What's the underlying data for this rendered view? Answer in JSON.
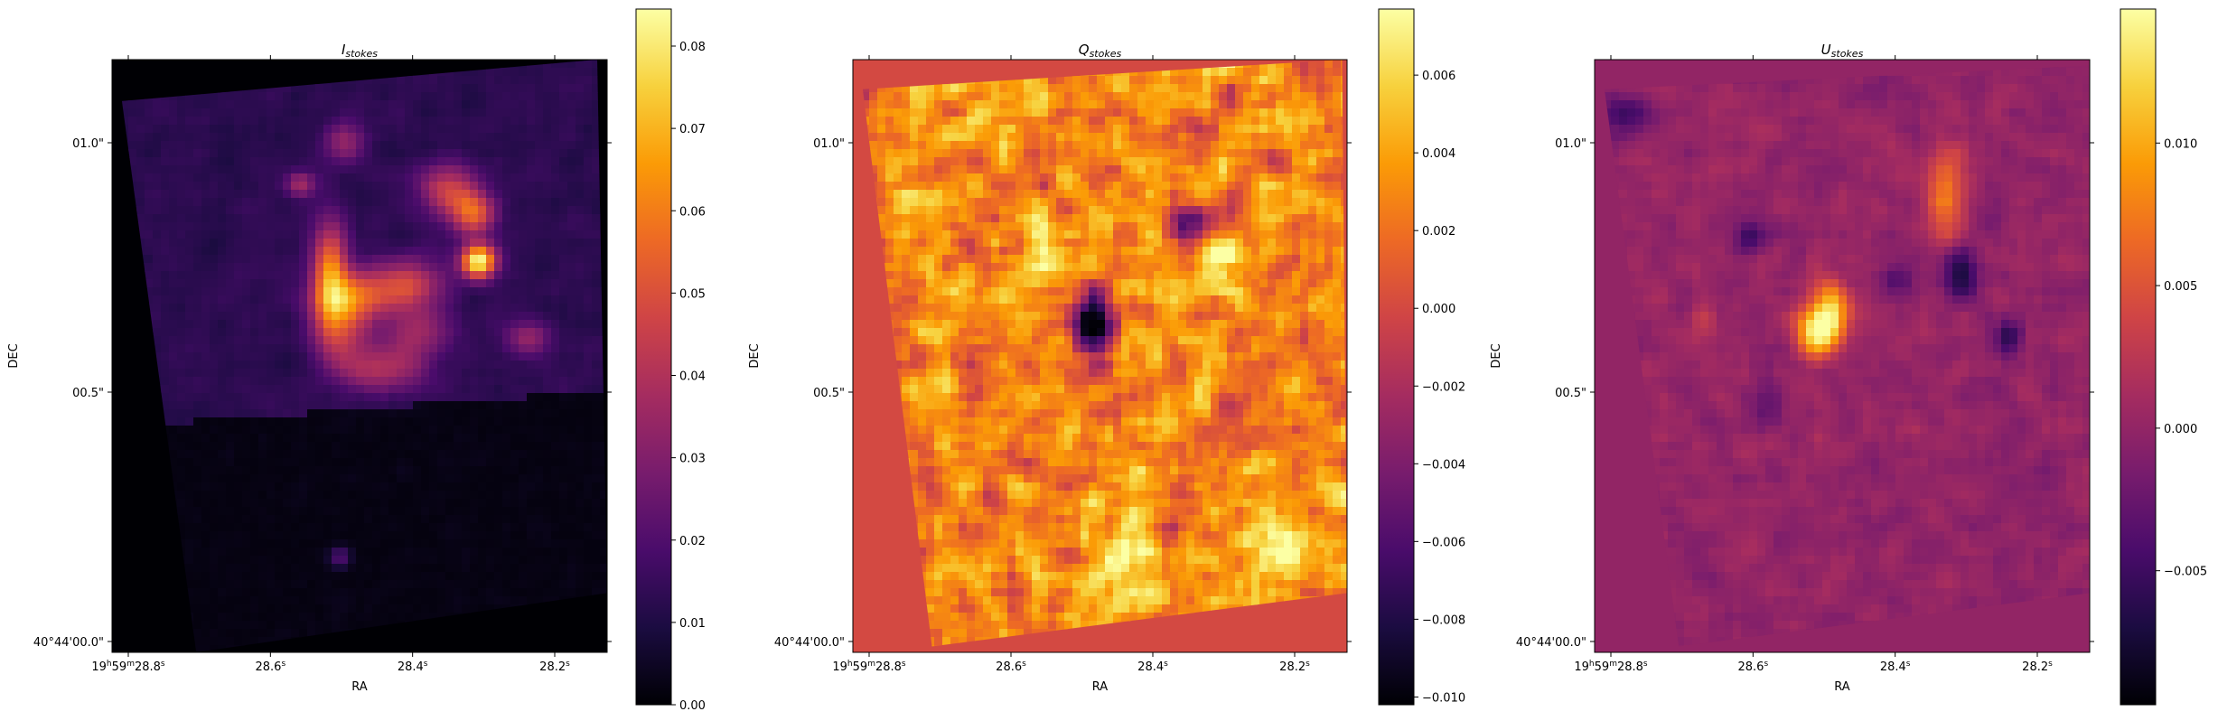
{
  "figure": {
    "colormap": "inferno",
    "colormap_stops": [
      "#000004",
      "#1b0c41",
      "#4a0c6b",
      "#781c6d",
      "#a52c60",
      "#cf4446",
      "#ed6925",
      "#fb9b06",
      "#f7d13d",
      "#fcffa4"
    ]
  },
  "chart_data": [
    {
      "type": "heatmap",
      "title_main": "I",
      "title_sub": "stokes",
      "xlabel": "RA",
      "ylabel": "DEC",
      "x_ticks": [
        {
          "value": 28.8,
          "main": "19",
          "s1": "h",
          "mid": "59",
          "s2": "m",
          "tail": "28.8",
          "s3": "s"
        },
        {
          "value": 28.6,
          "main": "",
          "s1": "",
          "mid": "",
          "s2": "",
          "tail": "28.6",
          "s3": "s"
        },
        {
          "value": 28.4,
          "main": "",
          "s1": "",
          "mid": "",
          "s2": "",
          "tail": "28.4",
          "s3": "s"
        },
        {
          "value": 28.2,
          "main": "",
          "s1": "",
          "mid": "",
          "s2": "",
          "tail": "28.2",
          "s3": "s"
        }
      ],
      "y_ticks": [
        {
          "value": 0.0,
          "label": "40°44'00.0\""
        },
        {
          "value": 0.5,
          "label": "00.5\""
        },
        {
          "value": 1.0,
          "label": "01.0\""
        }
      ],
      "colorbar": {
        "range": [
          0.0,
          0.0845
        ],
        "ticks": [
          {
            "value": 0.0,
            "label": "0.00"
          },
          {
            "value": 0.01,
            "label": "0.01"
          },
          {
            "value": 0.02,
            "label": "0.02"
          },
          {
            "value": 0.03,
            "label": "0.03"
          },
          {
            "value": 0.04,
            "label": "0.04"
          },
          {
            "value": 0.05,
            "label": "0.05"
          },
          {
            "value": 0.06,
            "label": "0.06"
          },
          {
            "value": 0.07,
            "label": "0.07"
          },
          {
            "value": 0.08,
            "label": "0.08"
          }
        ]
      }
    },
    {
      "type": "heatmap",
      "title_main": "Q",
      "title_sub": "stokes",
      "xlabel": "RA",
      "ylabel": "DEC",
      "x_ticks": [
        {
          "value": 28.8,
          "main": "19",
          "s1": "h",
          "mid": "59",
          "s2": "m",
          "tail": "28.8",
          "s3": "s"
        },
        {
          "value": 28.6,
          "main": "",
          "s1": "",
          "mid": "",
          "s2": "",
          "tail": "28.6",
          "s3": "s"
        },
        {
          "value": 28.4,
          "main": "",
          "s1": "",
          "mid": "",
          "s2": "",
          "tail": "28.4",
          "s3": "s"
        },
        {
          "value": 28.2,
          "main": "",
          "s1": "",
          "mid": "",
          "s2": "",
          "tail": "28.2",
          "s3": "s"
        }
      ],
      "y_ticks": [
        {
          "value": 0.0,
          "label": "40°44'00.0\""
        },
        {
          "value": 0.5,
          "label": "00.5\""
        },
        {
          "value": 1.0,
          "label": "01.0\""
        }
      ],
      "colorbar": {
        "range": [
          -0.0102,
          0.0077
        ],
        "ticks": [
          {
            "value": -0.01,
            "label": "−0.010"
          },
          {
            "value": -0.008,
            "label": "−0.008"
          },
          {
            "value": -0.006,
            "label": "−0.006"
          },
          {
            "value": -0.004,
            "label": "−0.004"
          },
          {
            "value": -0.002,
            "label": "−0.002"
          },
          {
            "value": 0.0,
            "label": "0.000"
          },
          {
            "value": 0.002,
            "label": "0.002"
          },
          {
            "value": 0.004,
            "label": "0.004"
          },
          {
            "value": 0.006,
            "label": "0.006"
          }
        ]
      }
    },
    {
      "type": "heatmap",
      "title_main": "U",
      "title_sub": "stokes",
      "xlabel": "RA",
      "ylabel": "DEC",
      "x_ticks": [
        {
          "value": 28.8,
          "main": "19",
          "s1": "h",
          "mid": "59",
          "s2": "m",
          "tail": "28.8",
          "s3": "s"
        },
        {
          "value": 28.6,
          "main": "",
          "s1": "",
          "mid": "",
          "s2": "",
          "tail": "28.6",
          "s3": "s"
        },
        {
          "value": 28.4,
          "main": "",
          "s1": "",
          "mid": "",
          "s2": "",
          "tail": "28.4",
          "s3": "s"
        },
        {
          "value": 28.2,
          "main": "",
          "s1": "",
          "mid": "",
          "s2": "",
          "tail": "28.2",
          "s3": "s"
        }
      ],
      "y_ticks": [
        {
          "value": 0.0,
          "label": "40°44'00.0\""
        },
        {
          "value": 0.5,
          "label": "00.5\""
        },
        {
          "value": 1.0,
          "label": "01.0\""
        }
      ],
      "colorbar": {
        "range": [
          -0.0097,
          0.0147
        ],
        "ticks": [
          {
            "value": -0.005,
            "label": "−0.005"
          },
          {
            "value": 0.0,
            "label": "0.000"
          },
          {
            "value": 0.005,
            "label": "0.005"
          },
          {
            "value": 0.01,
            "label": "0.010"
          }
        ]
      }
    }
  ]
}
